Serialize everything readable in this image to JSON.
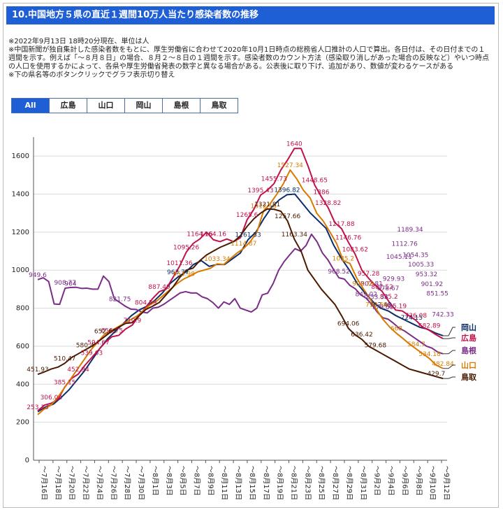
{
  "header": {
    "title": "10.中国地方５県の直近１週間10万人当たり感染者数の推移"
  },
  "notes": [
    "※2022年9月13日 18時20分現在、単位は人",
    "※中国新聞が独自集計した感染者数をもとに、厚生労働省に合わせて2020年10月1日時点の総務省人口推計の人口で算出。各日付は、その日付までの１週間を示す。例えば「～８月８日」の場合、８月２～８日の１週間を示す。感染者数のカウント方法（感染取り消しがあった場合の反映など）やいつ時点の人口を使用するかによって、各県や厚生労働省発表の数字と異なる場合がある。公表後に取り下げ、追加があり、数値が変わるケースがある",
    "※下の県名等のボタンクリックでグラフ表示切り替え"
  ],
  "tabs": [
    {
      "label": "All",
      "active": true
    },
    {
      "label": "広島",
      "active": false
    },
    {
      "label": "山口",
      "active": false
    },
    {
      "label": "岡山",
      "active": false
    },
    {
      "label": "島根",
      "active": false
    },
    {
      "label": "鳥取",
      "active": false
    }
  ],
  "chart_data": {
    "type": "line",
    "title": "中国地方５県の直近１週間10万人当たり感染者数の推移",
    "ylim": [
      0,
      1700
    ],
    "yticks": [
      0,
      200,
      400,
      600,
      800,
      1000,
      1200,
      1400,
      1600
    ],
    "x_tick_labels": [
      "～7月16日",
      "～7月18日",
      "～7月20日",
      "～7月22日",
      "～7月24日",
      "～7月26日",
      "～7月28日",
      "～7月30日",
      "～8月1日",
      "～8月3日",
      "～8月5日",
      "～8月7日",
      "～8月9日",
      "～8月11日",
      "～8月13日",
      "～8月15日",
      "～8月17日",
      "～8月19日",
      "～8月21日",
      "～8月23日",
      "～8月25日",
      "～8月27日",
      "～8月29日",
      "～8月31日",
      "～9月2日",
      "～9月4日",
      "～9月6日",
      "～9月8日",
      "～9月10日",
      "～9月12日"
    ],
    "series": [
      {
        "name": "岡山",
        "color": "#0b2d6b",
        "values": [
          255,
          280,
          295,
          330,
          370,
          420,
          470,
          530,
          590,
          640,
          680,
          720,
          760,
          790,
          810,
          840,
          880,
          930,
          964,
          990,
          1030,
          1050,
          1020,
          1030,
          1030,
          1060,
          1090,
          1161,
          1200,
          1270,
          1330,
          1370,
          1397,
          1400,
          1350,
          1300,
          1260,
          1220,
          1130,
          1060,
          1000,
          930,
          880,
          835,
          800,
          785,
          760,
          740,
          720,
          700,
          690,
          670,
          655
        ]
      },
      {
        "name": "広島",
        "color": "#c0124a",
        "values": [
          260,
          290,
          300,
          320,
          385,
          430,
          453,
          500,
          540,
          580,
          620,
          650,
          657,
          690,
          711,
          760,
          805,
          850,
          887,
          900,
          960,
          1020,
          1095,
          1140,
          1164,
          1200,
          1160,
          1150,
          1164,
          1150,
          1170,
          1265,
          1320,
          1395,
          1420,
          1456,
          1527,
          1580,
          1640,
          1640,
          1550,
          1449,
          1386,
          1329,
          1250,
          1218,
          1147,
          1084,
          1000,
          957,
          920,
          888,
          835,
          790,
          785,
          760,
          736,
          700,
          683,
          660,
          640
        ]
      },
      {
        "name": "島根",
        "color": "#7a2d87",
        "values": [
          950,
          960,
          940,
          822,
          820,
          905,
          909,
          910,
          904,
          905,
          900,
          900,
          969,
          940,
          849,
          830,
          810,
          795,
          793,
          780,
          775,
          800,
          805,
          820,
          840,
          860,
          880,
          887,
          880,
          880,
          860,
          850,
          829,
          800,
          833,
          820,
          850,
          800,
          790,
          780,
          800,
          870,
          879,
          930,
          1000,
          1045,
          1080,
          1113,
          1100,
          1130,
          1189,
          1150,
          1090,
          1054,
          1005,
          960,
          953,
          920,
          902,
          870,
          852,
          820,
          780,
          750,
          742,
          720,
          695,
          680,
          660,
          640,
          620,
          600,
          590,
          570,
          560
        ]
      },
      {
        "name": "山口",
        "color": "#d97a00",
        "values": [
          240,
          270,
          290,
          330,
          380,
          430,
          480,
          530,
          580,
          620,
          660,
          680,
          700,
          720,
          740,
          760,
          790,
          820,
          840,
          870,
          900,
          930,
          954,
          970,
          990,
          1000,
          1010,
          1033,
          1030,
          1060,
          1090,
          1114,
          1150,
          1200,
          1312,
          1350,
          1400,
          1456,
          1527,
          1480,
          1420,
          1380,
          1300,
          1257,
          1200,
          1140,
          1050,
          1035,
          960,
          903,
          850,
          793,
          740,
          700,
          668,
          640,
          610,
          585,
          560,
          534,
          500,
          483
        ]
      },
      {
        "name": "鳥取",
        "color": "#4a1a00",
        "values": [
          452,
          465,
          480,
          490,
          510,
          540,
          560,
          580,
          600,
          625,
          653,
          680,
          700,
          720,
          724,
          760,
          793,
          810,
          830,
          870,
          910,
          960,
          1000,
          1011,
          1050,
          1080,
          1100,
          1120,
          1135,
          1150,
          1180,
          1230,
          1270,
          1300,
          1322,
          1320,
          1310,
          1258,
          1163,
          1100,
          1000,
          950,
          900,
          860,
          820,
          760,
          694,
          660,
          636,
          600,
          580,
          560,
          540,
          520,
          500,
          480,
          470,
          460,
          450,
          440,
          430
        ]
      }
    ],
    "data_labels": [
      {
        "series": "岡山",
        "text": "963.77"
      },
      {
        "series": "岡山",
        "text": "1161.33"
      },
      {
        "series": "岡山",
        "text": "1396.82"
      },
      {
        "series": "岡山",
        "text": "792.48"
      },
      {
        "series": "岡山",
        "text": "724.15"
      },
      {
        "series": "広島",
        "text": "253.13"
      },
      {
        "series": "広島",
        "text": "306.04"
      },
      {
        "series": "広島",
        "text": "385.15"
      },
      {
        "series": "広島",
        "text": "452.94"
      },
      {
        "series": "広島",
        "text": "539.63"
      },
      {
        "series": "広島",
        "text": "594.67"
      },
      {
        "series": "広島",
        "text": "656.75"
      },
      {
        "series": "広島",
        "text": "710.9"
      },
      {
        "series": "広島",
        "text": "804.59"
      },
      {
        "series": "広島",
        "text": "887.49"
      },
      {
        "series": "広島",
        "text": "1011.36"
      },
      {
        "series": "広島",
        "text": "1095.26"
      },
      {
        "series": "広島",
        "text": "1164.16"
      },
      {
        "series": "広島",
        "text": "1164.16"
      },
      {
        "series": "広島",
        "text": "1265.6"
      },
      {
        "series": "広島",
        "text": "1395.43"
      },
      {
        "series": "広島",
        "text": "1455.73"
      },
      {
        "series": "広島",
        "text": "1640"
      },
      {
        "series": "広島",
        "text": "1448.65"
      },
      {
        "series": "広島",
        "text": "1386"
      },
      {
        "series": "広島",
        "text": "1328.82"
      },
      {
        "series": "広島",
        "text": "1217.88"
      },
      {
        "series": "広島",
        "text": "1146.76"
      },
      {
        "series": "広島",
        "text": "1083.62"
      },
      {
        "series": "広島",
        "text": "957.28"
      },
      {
        "series": "広島",
        "text": "887.52"
      },
      {
        "series": "広島",
        "text": "835.2"
      },
      {
        "series": "広島",
        "text": "785.19"
      },
      {
        "series": "広島",
        "text": "736.08"
      },
      {
        "series": "広島",
        "text": "682.89"
      },
      {
        "series": "島根",
        "text": "949.6"
      },
      {
        "series": "島根",
        "text": "908.77"
      },
      {
        "series": "島根",
        "text": "904"
      },
      {
        "series": "島根",
        "text": "821.75"
      },
      {
        "series": "島根",
        "text": "968.52"
      },
      {
        "series": "島根",
        "text": "849.02"
      },
      {
        "series": "島根",
        "text": "902.81"
      },
      {
        "series": "島根",
        "text": "833.38"
      },
      {
        "series": "島根",
        "text": "779.59"
      },
      {
        "series": "島根",
        "text": "878.67"
      },
      {
        "series": "島根",
        "text": "929.93"
      },
      {
        "series": "島根",
        "text": "1045.11"
      },
      {
        "series": "島根",
        "text": "1112.76"
      },
      {
        "series": "島根",
        "text": "1189.34"
      },
      {
        "series": "島根",
        "text": "1054.35"
      },
      {
        "series": "島根",
        "text": "1005.33"
      },
      {
        "series": "島根",
        "text": "953.32"
      },
      {
        "series": "島根",
        "text": "901.92"
      },
      {
        "series": "島根",
        "text": "851.55"
      },
      {
        "series": "島根",
        "text": "742.33"
      },
      {
        "series": "山口",
        "text": "953.98"
      },
      {
        "series": "山口",
        "text": "1033.34"
      },
      {
        "series": "山口",
        "text": "1114.87"
      },
      {
        "series": "山口",
        "text": "1312.16"
      },
      {
        "series": "山口",
        "text": "1527.34"
      },
      {
        "series": "山口",
        "text": "1035.2"
      },
      {
        "series": "山口",
        "text": "902.79"
      },
      {
        "series": "山口",
        "text": "792.59"
      },
      {
        "series": "山口",
        "text": "668"
      },
      {
        "series": "山口",
        "text": "584.7"
      },
      {
        "series": "山口",
        "text": "534.18"
      },
      {
        "series": "山口",
        "text": "482.84"
      },
      {
        "series": "鳥取",
        "text": "451.93"
      },
      {
        "series": "鳥取",
        "text": "510.47"
      },
      {
        "series": "鳥取",
        "text": "580.4"
      },
      {
        "series": "鳥取",
        "text": "652.68"
      },
      {
        "series": "鳥取",
        "text": "1321.81"
      },
      {
        "series": "鳥取",
        "text": "1257.66"
      },
      {
        "series": "鳥取",
        "text": "1163.34"
      },
      {
        "series": "鳥取",
        "text": "694.06"
      },
      {
        "series": "鳥取",
        "text": "636.42"
      },
      {
        "series": "鳥取",
        "text": "579.68"
      },
      {
        "series": "鳥取",
        "text": "429.7"
      }
    ],
    "legend": {
      "placement": "right-end",
      "entries": [
        "岡山",
        "広島",
        "島根",
        "山口",
        "鳥取"
      ]
    }
  }
}
